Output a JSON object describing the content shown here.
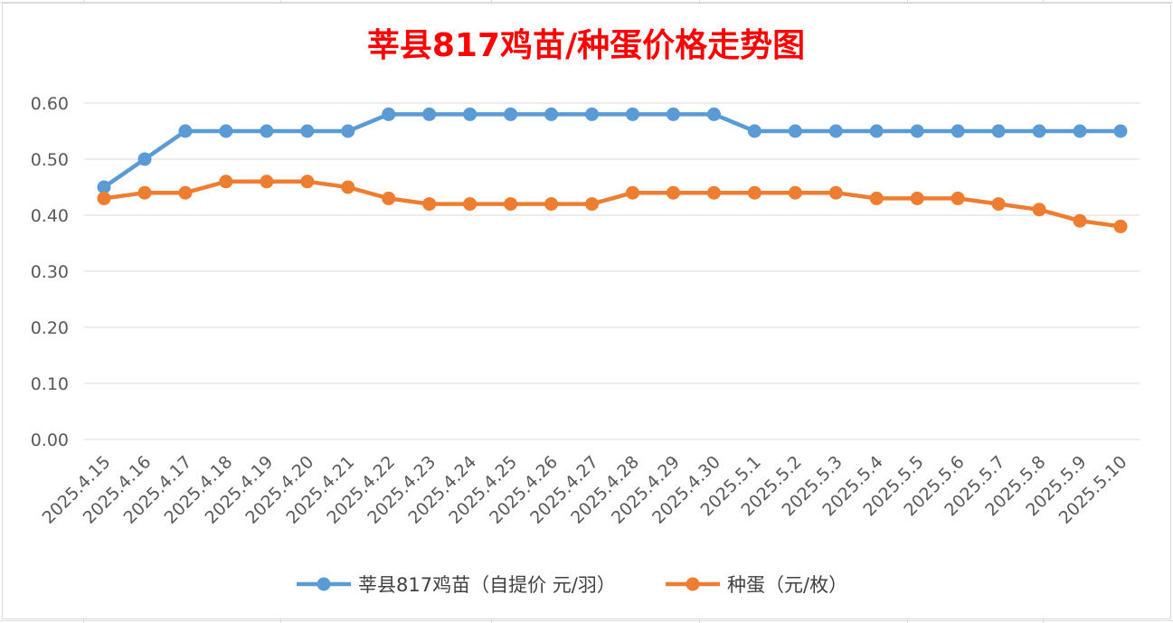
{
  "colors": {
    "title": "#ff0000",
    "series1": "#5b9bd5",
    "series2": "#ed7d31",
    "grid": "#d9d9d9",
    "axis": "#595959"
  },
  "chart_data": {
    "type": "line",
    "title": "莘县817鸡苗/种蛋价格走势图",
    "xlabel": "",
    "ylabel": "",
    "ylim": [
      0,
      0.6
    ],
    "yticks": [
      "0.00",
      "0.10",
      "0.20",
      "0.30",
      "0.40",
      "0.50",
      "0.60"
    ],
    "grid": "horizontal",
    "legend_position": "bottom",
    "categories": [
      "2025.4.15",
      "2025.4.16",
      "2025.4.17",
      "2025.4.18",
      "2025.4.19",
      "2025.4.20",
      "2025.4.21",
      "2025.4.22",
      "2025.4.23",
      "2025.4.24",
      "2025.4.25",
      "2025.4.26",
      "2025.4.27",
      "2025.4.28",
      "2025.4.29",
      "2025.4.30",
      "2025.5.1",
      "2025.5.2",
      "2025.5.3",
      "2025.5.4",
      "2025.5.5",
      "2025.5.6",
      "2025.5.7",
      "2025.5.8",
      "2025.5.9",
      "2025.5.10"
    ],
    "series": [
      {
        "name": "莘县817鸡苗（自提价 元/羽）",
        "color": "#5b9bd5",
        "values": [
          0.45,
          0.5,
          0.55,
          0.55,
          0.55,
          0.55,
          0.55,
          0.58,
          0.58,
          0.58,
          0.58,
          0.58,
          0.58,
          0.58,
          0.58,
          0.58,
          0.55,
          0.55,
          0.55,
          0.55,
          0.55,
          0.55,
          0.55,
          0.55,
          0.55,
          0.55
        ]
      },
      {
        "name": "种蛋（元/枚）",
        "color": "#ed7d31",
        "values": [
          0.43,
          0.44,
          0.44,
          0.46,
          0.46,
          0.46,
          0.45,
          0.43,
          0.42,
          0.42,
          0.42,
          0.42,
          0.42,
          0.44,
          0.44,
          0.44,
          0.44,
          0.44,
          0.44,
          0.43,
          0.43,
          0.43,
          0.42,
          0.41,
          0.39,
          0.38
        ]
      }
    ]
  }
}
